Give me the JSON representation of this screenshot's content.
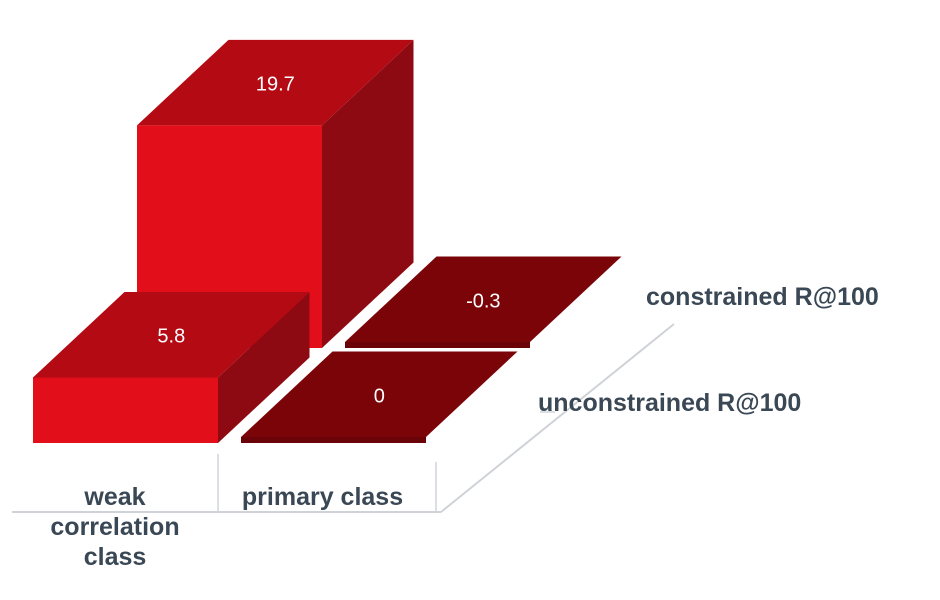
{
  "chart_data": {
    "type": "bar",
    "title": "",
    "categories": [
      "weak correlation class",
      "primary class"
    ],
    "category_labels": [
      [
        "weak",
        "correlation",
        "class"
      ],
      [
        "primary class"
      ]
    ],
    "series": [
      {
        "name": "unconstrained R@100",
        "values": [
          5.8,
          0
        ]
      },
      {
        "name": "constrained R@100",
        "values": [
          19.7,
          -0.3
        ]
      }
    ],
    "data_labels": [
      [
        "5.8",
        "0"
      ],
      [
        "19.7",
        "-0.3"
      ]
    ],
    "style": "3d-column",
    "grid": false,
    "legend": "none",
    "colors": {
      "front": "#e20f1a",
      "side": "#8e0a12",
      "top": "#b30a14",
      "flat_top": "#7b0409",
      "flat_side": "#6a0307",
      "floor": "#cfd3d8",
      "label_text": "#3a4754",
      "value_text": "#ffffff"
    }
  }
}
